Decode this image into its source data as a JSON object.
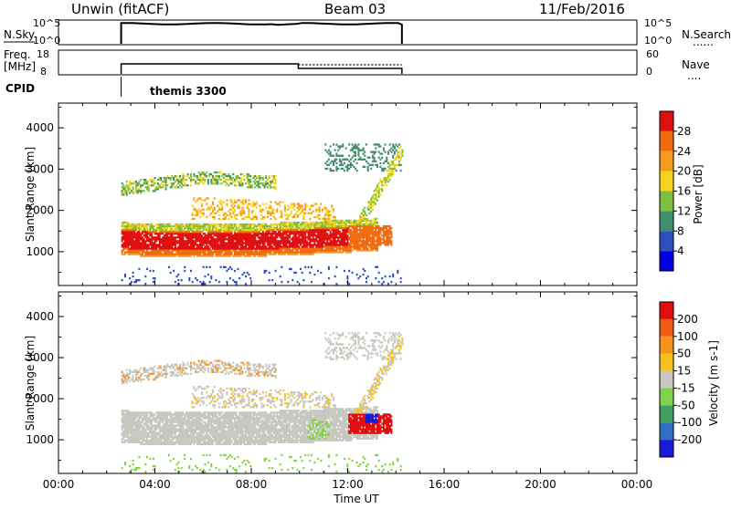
{
  "header": {
    "station": "Unwin (fitACF)",
    "beam": "Beam 03",
    "date": "11/Feb/2016"
  },
  "side_labels": {
    "nsky": "N.Sky",
    "freq": "Freq.",
    "freq_unit": "[MHz]",
    "cpid": "CPID",
    "nsearch": "N.Search",
    "nave": "Nave",
    "dots": "......",
    "dots_short": "...."
  },
  "small_panels": {
    "noise_ticks_left": [
      "10^5",
      "10^0"
    ],
    "noise_ticks_right": [
      "10^5",
      "10^0"
    ],
    "freq_ticks_left": [
      "18",
      "8"
    ],
    "freq_ticks_right": [
      "60",
      "0"
    ]
  },
  "cpid_program": {
    "label": "themis 3300",
    "start_hour": 2.6
  },
  "operation": {
    "start_hour": 2.6,
    "end_hour": 14.25,
    "nave_step_hour": 9.95
  },
  "chart_data": [
    {
      "type": "heatmap",
      "name": "power",
      "ylabel": "Slant Range [km]",
      "x_range_hours": [
        0,
        24
      ],
      "ylim": [
        180,
        4600
      ],
      "y_ticks": [
        1000,
        2000,
        3000,
        4000
      ],
      "colorbar": {
        "title": "Power [dB]",
        "tick_labels": [
          "4",
          "8",
          "12",
          "16",
          "20",
          "24",
          "28"
        ],
        "colors": [
          "#0000e6",
          "#2e4fbf",
          "#3f8f6f",
          "#7fbf3f",
          "#f5d21e",
          "#f59a1a",
          "#f26a0f",
          "#e01010"
        ]
      }
    },
    {
      "type": "heatmap",
      "name": "velocity",
      "ylabel": "Slant Range [km]",
      "xlabel": "Time UT",
      "x_ticks": [
        "00:00",
        "04:00",
        "08:00",
        "12:00",
        "16:00",
        "20:00",
        "00:00"
      ],
      "x_range_hours": [
        0,
        24
      ],
      "ylim": [
        180,
        4600
      ],
      "y_ticks": [
        1000,
        2000,
        3000,
        4000
      ],
      "colorbar": {
        "title": "Velocity [m s-1]",
        "tick_labels": [
          "200",
          "100",
          "50",
          "15",
          "-15",
          "-50",
          "-100",
          "-200"
        ],
        "colors": [
          "#1a1ad6",
          "#2f6fc4",
          "#3f9f5f",
          "#7fd24a",
          "#c8c8c0",
          "#f5c21e",
          "#f5931a",
          "#f25a12",
          "#e00e0e"
        ]
      }
    }
  ]
}
